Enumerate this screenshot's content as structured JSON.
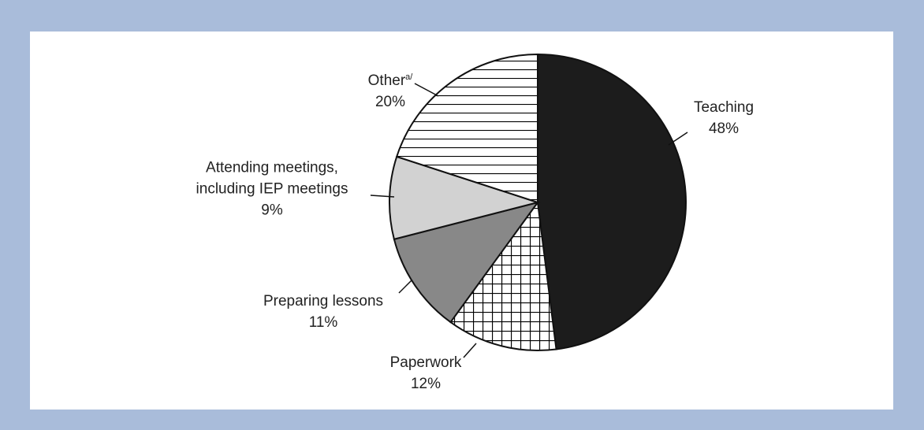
{
  "chart_data": {
    "type": "pie",
    "categories": [
      "Teaching",
      "Paperwork",
      "Preparing lessons",
      "Attending meetings,\nincluding IEP meetings",
      "Other"
    ],
    "values": [
      48,
      12,
      11,
      9,
      20
    ],
    "value_labels": [
      "48%",
      "12%",
      "11%",
      "9%",
      "20%"
    ],
    "colors": [
      "#1c1c1c",
      "#ffffff",
      "#888888",
      "#d2d2d2",
      "#ffffff"
    ],
    "patterns": [
      "solid",
      "grid",
      "solid",
      "solid",
      "hlines"
    ],
    "footnote_mark": "a/"
  }
}
